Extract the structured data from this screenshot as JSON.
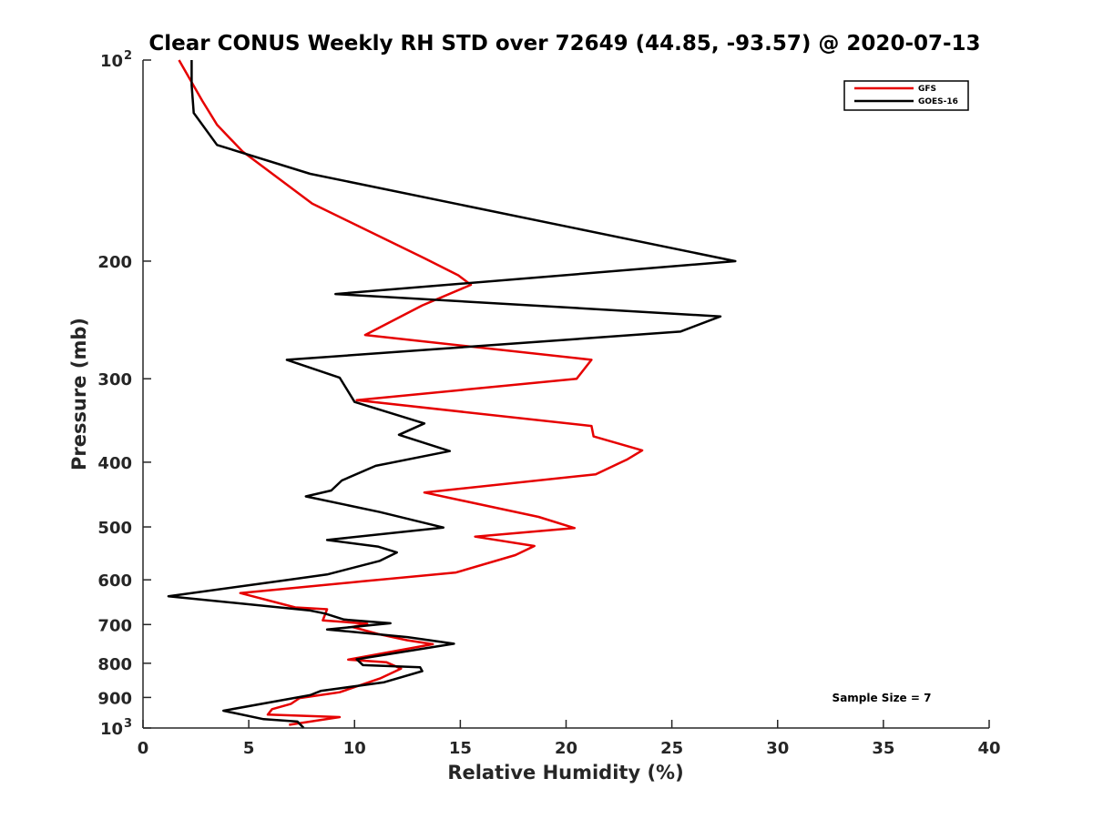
{
  "chart_data": {
    "type": "line",
    "title": "Clear CONUS Weekly RH STD over 72649 (44.85, -93.57) @ 2020-07-13",
    "xlabel": "Relative Humidity (%)",
    "ylabel": "Pressure (mb)",
    "xlim": [
      0,
      40
    ],
    "ylim": [
      1000,
      100
    ],
    "yscale": "log",
    "y_reversed": true,
    "grid": false,
    "legend_position": "top-right",
    "x_ticks": [
      "0",
      "5",
      "10",
      "15",
      "20",
      "25",
      "30",
      "35",
      "40"
    ],
    "y_ticks": [
      {
        "value": 100,
        "base": "10",
        "exp": "2"
      },
      {
        "value": 200,
        "label": "200"
      },
      {
        "value": 300,
        "label": "300"
      },
      {
        "value": 400,
        "label": "400"
      },
      {
        "value": 500,
        "label": "500"
      },
      {
        "value": 600,
        "label": "600"
      },
      {
        "value": 700,
        "label": "700"
      },
      {
        "value": 800,
        "label": "800"
      },
      {
        "value": 900,
        "label": "900"
      },
      {
        "value": 1000,
        "base": "10",
        "exp": "3"
      }
    ],
    "annotation": "Sample Size = 7",
    "series": [
      {
        "name": "GFS",
        "color": "#e60000",
        "points": [
          [
            1.7,
            100
          ],
          [
            2.8,
            115
          ],
          [
            3.5,
            125
          ],
          [
            4.7,
            137
          ],
          [
            8.0,
            164
          ],
          [
            13.3,
            198
          ],
          [
            14.9,
            210
          ],
          [
            15.5,
            217
          ],
          [
            13.2,
            233
          ],
          [
            10.5,
            258
          ],
          [
            21.2,
            281
          ],
          [
            20.5,
            300
          ],
          [
            10.1,
            323
          ],
          [
            21.2,
            353
          ],
          [
            21.3,
            366
          ],
          [
            23.6,
            384
          ],
          [
            22.9,
            396
          ],
          [
            21.4,
            417
          ],
          [
            13.3,
            444
          ],
          [
            18.7,
            483
          ],
          [
            20.4,
            502
          ],
          [
            15.7,
            517
          ],
          [
            18.5,
            534
          ],
          [
            17.6,
            551
          ],
          [
            14.8,
            585
          ],
          [
            10.4,
            603
          ],
          [
            4.6,
            628
          ],
          [
            7.2,
            660
          ],
          [
            8.7,
            664
          ],
          [
            8.5,
            690
          ],
          [
            10.6,
            698
          ],
          [
            9.9,
            706
          ],
          [
            11.1,
            723
          ],
          [
            12.5,
            739
          ],
          [
            13.7,
            749
          ],
          [
            9.7,
            790
          ],
          [
            11.5,
            797
          ],
          [
            12.2,
            815
          ],
          [
            11.2,
            843
          ],
          [
            9.3,
            884
          ],
          [
            7.4,
            902
          ],
          [
            7.0,
            920
          ],
          [
            6.1,
            937
          ],
          [
            5.9,
            955
          ],
          [
            9.3,
            963
          ],
          [
            6.9,
            989
          ]
        ]
      },
      {
        "name": "GOES-16",
        "color": "#000000",
        "points": [
          [
            2.3,
            100
          ],
          [
            2.3,
            109
          ],
          [
            2.4,
            120
          ],
          [
            3.5,
            134
          ],
          [
            7.9,
            148
          ],
          [
            28.0,
            200
          ],
          [
            9.1,
            224
          ],
          [
            27.3,
            242
          ],
          [
            25.4,
            255
          ],
          [
            6.8,
            281
          ],
          [
            9.3,
            299
          ],
          [
            10.0,
            325
          ],
          [
            13.3,
            350
          ],
          [
            12.1,
            364
          ],
          [
            14.5,
            385
          ],
          [
            11.0,
            405
          ],
          [
            9.4,
            426
          ],
          [
            8.9,
            441
          ],
          [
            7.7,
            450
          ],
          [
            11.2,
            475
          ],
          [
            14.2,
            501
          ],
          [
            8.7,
            523
          ],
          [
            11.1,
            535
          ],
          [
            12.0,
            546
          ],
          [
            11.2,
            562
          ],
          [
            8.7,
            589
          ],
          [
            5.4,
            609
          ],
          [
            1.2,
            635
          ],
          [
            7.9,
            667
          ],
          [
            8.6,
            674
          ],
          [
            9.5,
            688
          ],
          [
            11.7,
            697
          ],
          [
            8.7,
            712
          ],
          [
            12.5,
            731
          ],
          [
            14.7,
            748
          ],
          [
            10.1,
            789
          ],
          [
            10.4,
            805
          ],
          [
            13.1,
            811
          ],
          [
            13.2,
            822
          ],
          [
            11.4,
            854
          ],
          [
            8.4,
            880
          ],
          [
            7.9,
            893
          ],
          [
            3.8,
            942
          ],
          [
            5.7,
            970
          ],
          [
            7.3,
            978
          ],
          [
            7.6,
            1000
          ]
        ]
      }
    ]
  }
}
